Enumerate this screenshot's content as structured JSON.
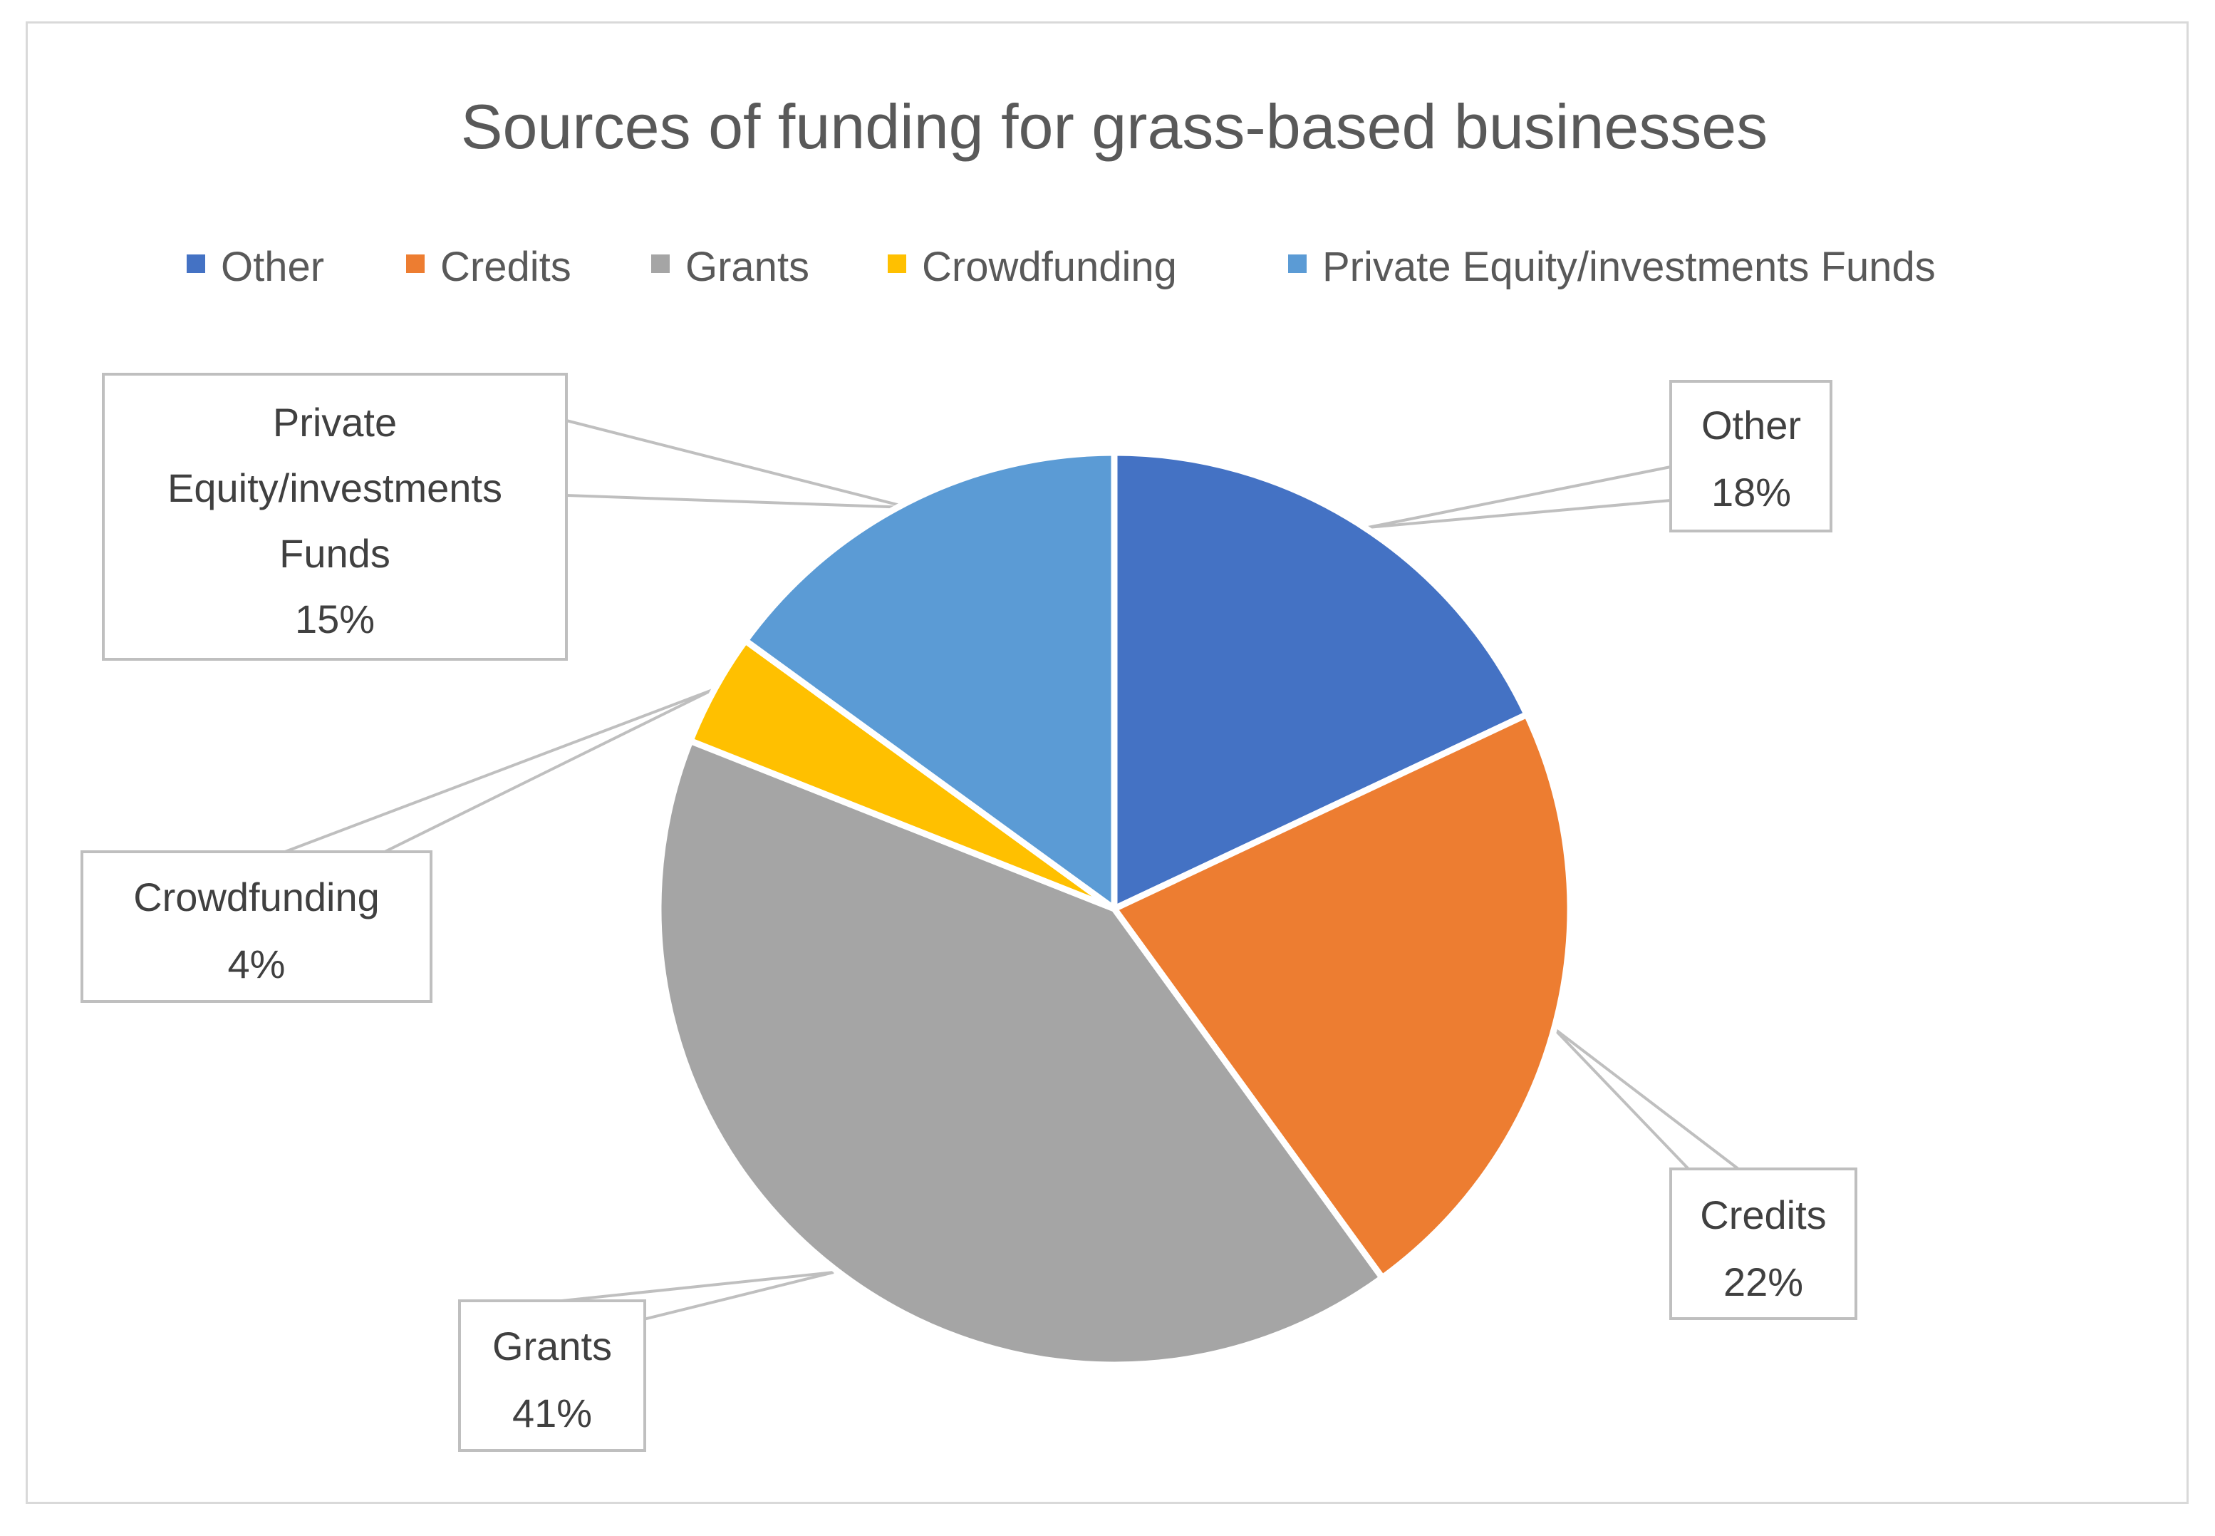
{
  "chart_data": {
    "type": "pie",
    "title": "Sources of funding for grass-based businesses",
    "legend_position": "top",
    "slices": [
      {
        "name": "Other",
        "value": 18,
        "label": "18%",
        "color": "#4472c4"
      },
      {
        "name": "Credits",
        "value": 22,
        "label": "22%",
        "color": "#ed7d31"
      },
      {
        "name": "Grants",
        "value": 41,
        "label": "41%",
        "color": "#a5a5a5"
      },
      {
        "name": "Crowdfunding",
        "value": 4,
        "label": "4%",
        "color": "#ffc000"
      },
      {
        "name": "Private Equity/investments Funds",
        "value": 15,
        "label": "15%",
        "color": "#5b9bd5"
      }
    ],
    "private_equity_label_lines": [
      "Private",
      "Equity/investments",
      "Funds"
    ]
  }
}
